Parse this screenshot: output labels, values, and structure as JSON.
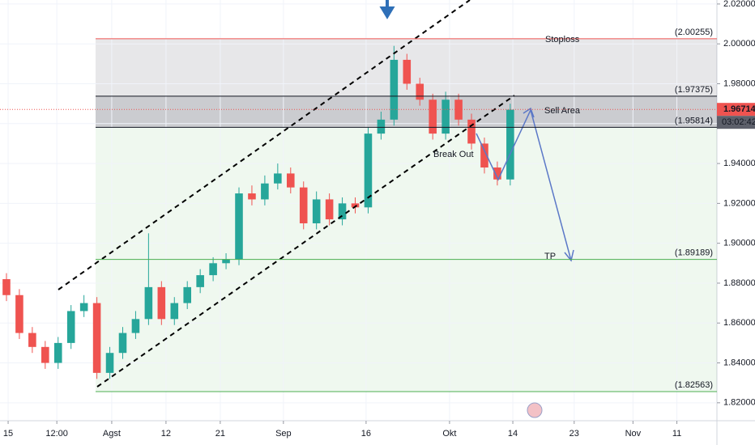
{
  "chart_data": {
    "type": "candlestick",
    "x": [
      0,
      1,
      2,
      3,
      4,
      5,
      6,
      7,
      8,
      9,
      10,
      11,
      12,
      13,
      14,
      15,
      16,
      17,
      18,
      19,
      20,
      21,
      22,
      23,
      24,
      25,
      26,
      27,
      28,
      29,
      30,
      31,
      32,
      33,
      34,
      35,
      36,
      37,
      38,
      39
    ],
    "open": [
      1.882,
      1.874,
      1.855,
      1.848,
      1.84,
      1.85,
      1.866,
      1.87,
      1.835,
      1.845,
      1.855,
      1.862,
      1.878,
      1.862,
      1.87,
      1.878,
      1.884,
      1.89,
      1.892,
      1.925,
      1.922,
      1.93,
      1.935,
      1.928,
      1.91,
      1.922,
      1.912,
      1.92,
      1.918,
      1.955,
      1.962,
      1.992,
      1.98,
      1.972,
      1.955,
      1.972,
      1.962,
      1.95,
      1.938,
      1.932
    ],
    "high": [
      1.885,
      1.877,
      1.858,
      1.851,
      1.853,
      1.869,
      1.874,
      1.873,
      1.848,
      1.858,
      1.866,
      1.905,
      1.881,
      1.873,
      1.881,
      1.887,
      1.893,
      1.895,
      1.928,
      1.929,
      1.934,
      1.94,
      1.938,
      1.931,
      1.926,
      1.925,
      1.923,
      1.923,
      1.958,
      1.966,
      1.999,
      1.995,
      1.983,
      1.975,
      1.976,
      1.975,
      1.965,
      1.953,
      1.941,
      1.97
    ],
    "low": [
      1.871,
      1.852,
      1.845,
      1.837,
      1.837,
      1.847,
      1.863,
      1.832,
      1.832,
      1.842,
      1.852,
      1.859,
      1.859,
      1.859,
      1.867,
      1.875,
      1.881,
      1.887,
      1.889,
      1.919,
      1.919,
      1.927,
      1.925,
      1.907,
      1.907,
      1.909,
      1.909,
      1.915,
      1.915,
      1.952,
      1.959,
      1.977,
      1.969,
      1.952,
      1.952,
      1.959,
      1.947,
      1.935,
      1.929,
      1.929
    ],
    "close": [
      1.874,
      1.855,
      1.848,
      1.84,
      1.85,
      1.866,
      1.87,
      1.835,
      1.845,
      1.855,
      1.862,
      1.878,
      1.862,
      1.87,
      1.878,
      1.884,
      1.89,
      1.892,
      1.925,
      1.922,
      1.93,
      1.935,
      1.928,
      1.91,
      1.922,
      1.912,
      1.92,
      1.918,
      1.955,
      1.962,
      1.992,
      1.98,
      1.972,
      1.955,
      1.972,
      1.962,
      1.95,
      1.938,
      1.932,
      1.967
    ],
    "up_color": "#26a69a",
    "down_color": "#ef5350",
    "xlim": [
      -0.5,
      55
    ],
    "xticks": [
      {
        "value": 0.13,
        "label": "15"
      },
      {
        "value": 3.9,
        "label": "12:00"
      },
      {
        "value": 8.15,
        "label": "Agst"
      },
      {
        "value": 12.35,
        "label": "12"
      },
      {
        "value": 16.55,
        "label": "21"
      },
      {
        "value": 21.44,
        "label": "Sep"
      },
      {
        "value": 27.84,
        "label": "16"
      },
      {
        "value": 34.3,
        "label": "Okt"
      },
      {
        "value": 39.2,
        "label": "14"
      },
      {
        "value": 43.95,
        "label": "23"
      },
      {
        "value": 48.5,
        "label": "Nov"
      },
      {
        "value": 51.9,
        "label": "11"
      }
    ],
    "ylim": [
      1.811,
      2.022
    ],
    "yticks": [
      {
        "value": 1.82,
        "label": "1.82000"
      },
      {
        "value": 1.84,
        "label": "1.84000"
      },
      {
        "value": 1.86,
        "label": "1.86000"
      },
      {
        "value": 1.88,
        "label": "1.88000"
      },
      {
        "value": 1.9,
        "label": "1.90000"
      },
      {
        "value": 1.92,
        "label": "1.92000"
      },
      {
        "value": 1.94,
        "label": "1.94000"
      },
      {
        "value": 1.96,
        "label": "1.96000"
      },
      {
        "value": 1.98,
        "label": "1.98000"
      },
      {
        "value": 2.0,
        "label": "2.00000"
      },
      {
        "value": 2.02,
        "label": "2.02000"
      }
    ],
    "levels": [
      {
        "value": 2.00255,
        "label": "(2.00255)",
        "color": "#ef5350"
      },
      {
        "value": 1.97375,
        "label": "(1.97375)",
        "color": "#131722"
      },
      {
        "value": 1.95814,
        "label": "(1.95814)",
        "color": "#131722"
      },
      {
        "value": 1.89189,
        "label": "(1.89189)",
        "color": "#4caf50"
      },
      {
        "value": 1.82563,
        "label": "(1.82563)",
        "color": "#4caf50"
      }
    ],
    "last_price": {
      "value": 1.96714,
      "label": "1.96714"
    },
    "countdown": "03:02:42",
    "annotations": [
      "Stoploss",
      "Sell Area",
      "Break Out",
      "TP"
    ]
  }
}
